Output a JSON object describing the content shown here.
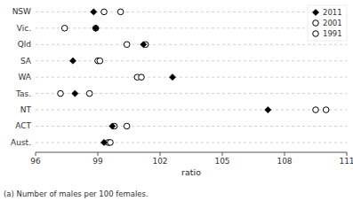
{
  "chart_data": {
    "type": "dot",
    "orientation": "horizontal",
    "categories": [
      "NSW",
      "Vic.",
      "Qld",
      "SA",
      "WA",
      "Tas.",
      "NT",
      "ACT",
      "Aust."
    ],
    "series": [
      {
        "name": "1991",
        "color": "#000000",
        "marker": "circle",
        "values": [
          100.1,
          97.4,
          101.3,
          99.0,
          100.9,
          97.2,
          110.0,
          99.8,
          99.5
        ]
      },
      {
        "name": "2001",
        "color": "#000000",
        "marker": "circle",
        "values": [
          99.3,
          98.9,
          100.4,
          99.1,
          101.1,
          98.6,
          109.5,
          100.4,
          99.6
        ]
      },
      {
        "name": "2011",
        "color": "#000000",
        "marker": "diamond",
        "values": [
          98.8,
          98.9,
          101.2,
          97.8,
          102.6,
          97.9,
          107.2,
          99.7,
          99.3
        ]
      }
    ],
    "xlabel": "ratio",
    "xlim": [
      96,
      111
    ],
    "xticks": [
      96,
      99,
      102,
      105,
      108,
      111
    ],
    "grid": true,
    "legend": "upper right",
    "annotations": [
      "(a) Number of males per 100 females."
    ]
  }
}
